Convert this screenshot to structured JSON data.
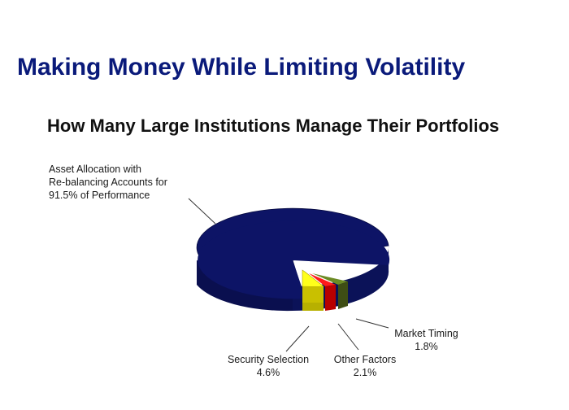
{
  "slide": {
    "title": "Making Money While Limiting Volatility"
  },
  "chart_data": {
    "type": "pie",
    "title": "How Many Large Institutions Manage Their Portfolios",
    "slices": [
      {
        "name": "Asset Allocation with Re-balancing Accounts for",
        "value": 91.5,
        "value_label": "91.5% of Performance",
        "color": "#0d1466"
      },
      {
        "name": "Security Selection",
        "value": 4.6,
        "value_label": "4.6%",
        "color": "#ffff1a"
      },
      {
        "name": "Other Factors",
        "value": 2.1,
        "value_label": "2.1%",
        "color": "#ee1111"
      },
      {
        "name": "Market Timing",
        "value": 1.8,
        "value_label": "1.8%",
        "color": "#556b1e"
      }
    ],
    "labels": {
      "asset_line1": "Asset Allocation with",
      "asset_line2": "Re-balancing Accounts for",
      "asset_line3": "91.5% of Performance",
      "security_name": "Security Selection",
      "security_value": "4.6%",
      "other_name": "Other Factors",
      "other_value": "2.1%",
      "market_name": "Market Timing",
      "market_value": "1.8%"
    }
  }
}
